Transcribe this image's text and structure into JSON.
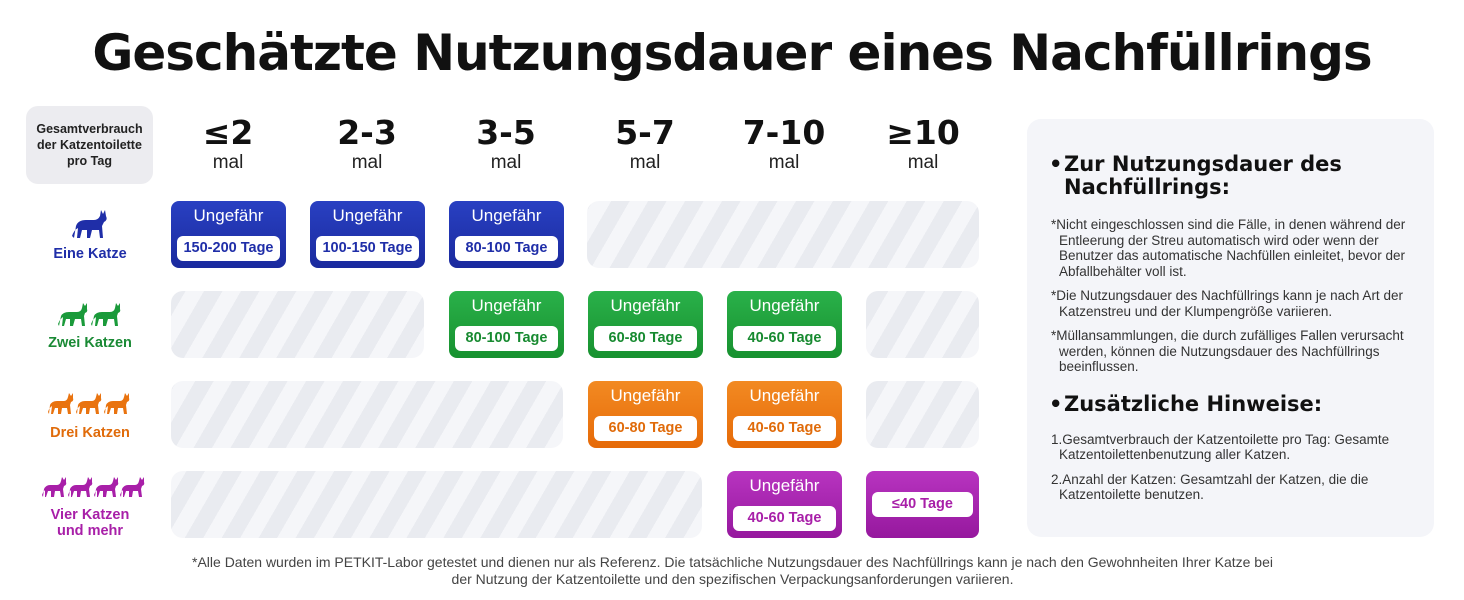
{
  "title": "Geschätzte Nutzungsdauer eines Nachfüllrings",
  "corner_label": "Gesamtverbrauch der Katzentoilette pro Tag",
  "columns": [
    {
      "range": "≤2",
      "unit": "mal"
    },
    {
      "range": "2-3",
      "unit": "mal"
    },
    {
      "range": "3-5",
      "unit": "mal"
    },
    {
      "range": "5-7",
      "unit": "mal"
    },
    {
      "range": "7-10",
      "unit": "mal"
    },
    {
      "range": "≥10",
      "unit": "mal"
    }
  ],
  "rows": [
    {
      "label": "Eine Katze",
      "label2": "",
      "color": "#1f2ea8",
      "cat_count": 1
    },
    {
      "label": "Zwei Katzen",
      "label2": "",
      "color": "#1a9a3a",
      "cat_count": 2
    },
    {
      "label": "Drei Katzen",
      "label2": "",
      "color": "#e9730f",
      "cat_count": 3
    },
    {
      "label": "Vier Katzen",
      "label2": "und mehr",
      "color": "#a81fa8",
      "cat_count": 4
    }
  ],
  "approx_label": "Ungefähr",
  "cards": {
    "r1c1": "150-200 Tage",
    "r1c2": "100-150 Tage",
    "r1c3": "80-100 Tage",
    "r2c3": "80-100 Tage",
    "r2c4": "60-80 Tage",
    "r2c5": "40-60 Tage",
    "r3c4": "60-80 Tage",
    "r3c5": "40-60 Tage",
    "r4c5": "40-60 Tage",
    "r4c6": "≤40 Tage"
  },
  "side": {
    "heading1_line1": "Zur Nutzungsdauer des",
    "heading1_line2": "Nachfüllrings:",
    "note1": "*Nicht eingeschlossen sind die Fälle, in denen während der Entleerung der Streu automatisch wird oder wenn der Benutzer das automatische Nachfüllen einleitet, bevor der Abfallbehälter voll ist.",
    "note2": "*Die Nutzungsdauer des Nachfüllrings kann je nach Art der Katzenstreu und der Klumpengröße variieren.",
    "note3": "*Müllansammlungen, die durch zufälliges Fallen verursacht werden, können die Nutzungsdauer des Nachfüllrings beeinflussen.",
    "heading2": "Zusätzliche Hinweise:",
    "hint1": "1.Gesamtverbrauch der Katzentoilette pro Tag: Gesamte Katzentoilettenbenutzung aller Katzen.",
    "hint2": "2.Anzahl der Katzen: Gesamtzahl der Katzen, die die Katzentoilette benutzen."
  },
  "footnote": "*Alle Daten wurden im PETKIT-Labor getestet und dienen nur als Referenz. Die tatsächliche Nutzungsdauer des Nachfüllrings kann je nach den Gewohnheiten Ihrer Katze bei der Nutzung der Katzentoilette und den spezifischen Verpackungsanforderungen variieren."
}
